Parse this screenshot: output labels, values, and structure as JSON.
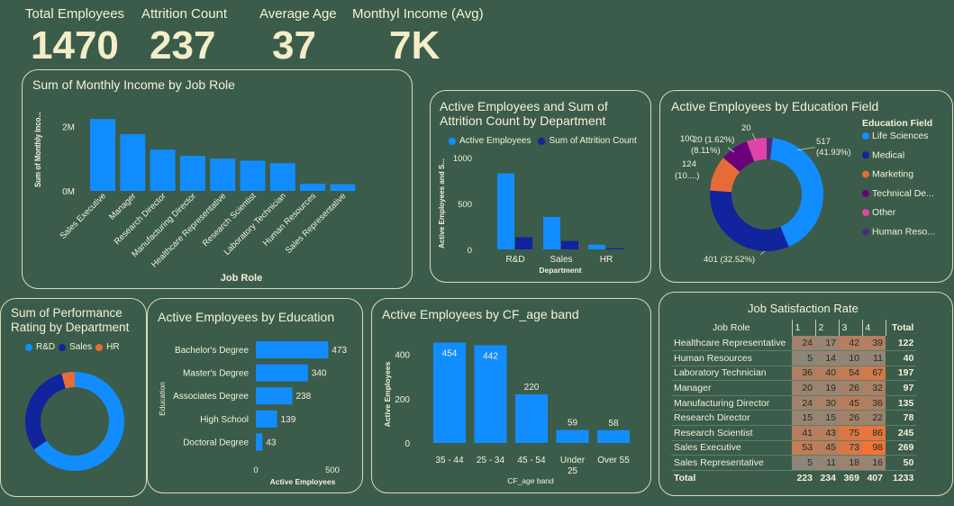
{
  "kpis": [
    {
      "label": "Total Employees",
      "value": "1470"
    },
    {
      "label": "Attrition Count",
      "value": "237"
    },
    {
      "label": "Average Age",
      "value": "37"
    },
    {
      "label": "Monthyl Income (Avg)",
      "value": "7K"
    }
  ],
  "colors": {
    "accent": "#118dff",
    "dark_blue": "#12239e",
    "orange": "#e66c37",
    "purple": "#6b007b",
    "pink": "#e044a7",
    "indigo": "#4a2d7a",
    "background": "#3b5c4a",
    "border": "#dcd9b8"
  },
  "income_by_role": {
    "title": "Sum of Monthly Income by Job Role",
    "chart_data": {
      "type": "bar",
      "title": "Sum of Monthly Income by Job Role",
      "xlabel": "Job Role",
      "ylabel": "Sum of Monthly Inco...",
      "categories": [
        "Sales Executive",
        "Manager",
        "Research Director",
        "Manufacturing Director",
        "Healthcare Representative",
        "Research Scientist",
        "Laboratory Technician",
        "Human Resources",
        "Sales Representative"
      ],
      "values": [
        2230000,
        1760000,
        1280000,
        1090000,
        1000000,
        940000,
        860000,
        220000,
        210000
      ],
      "yticks": [
        "2M",
        "0M"
      ],
      "ylim": [
        0,
        2600000
      ]
    }
  },
  "dept_chart": {
    "title_line1": "Active Employees and Sum of",
    "title_line2": "Attrition Count by Department",
    "legend": [
      "Active Employees",
      "Sum of Attrition Count"
    ],
    "chart_data": {
      "type": "bar",
      "xlabel": "Department",
      "ylabel": "Active Employees and S...",
      "categories": [
        "R&D",
        "Sales",
        "HR"
      ],
      "series": [
        {
          "name": "Active Employees",
          "values": [
            828,
            354,
            51
          ]
        },
        {
          "name": "Sum of Attrition Count",
          "values": [
            133,
            92,
            12
          ]
        }
      ],
      "yticks": [
        "1000",
        "500",
        "0"
      ],
      "ylim": [
        0,
        1000
      ]
    }
  },
  "education_field": {
    "title": "Active Employees by Education Field",
    "legend_title": "Education Field",
    "legend": [
      "Life Sciences",
      "Medical",
      "Marketing",
      "Technical De...",
      "Other",
      "Human Reso..."
    ],
    "labels": [
      "517",
      "(41.93%)",
      "401 (32.52%)",
      "124",
      "(10....)",
      "100",
      "(8.11%)",
      "20 (1.62%)",
      "20"
    ],
    "chart_data": {
      "type": "pie",
      "categories": [
        "Life Sciences",
        "Medical",
        "Marketing",
        "Technical Degree",
        "Other",
        "Human Resources"
      ],
      "values": [
        517,
        401,
        124,
        100,
        71,
        20
      ]
    }
  },
  "performance": {
    "title_line1": "Sum of Performance",
    "title_line2": "Rating by Department",
    "legend": [
      "R&D",
      "Sales",
      "HR"
    ],
    "chart_data": {
      "type": "pie",
      "categories": [
        "R&D",
        "Sales",
        "HR"
      ],
      "values": [
        65.4,
        30.3,
        4.3
      ]
    }
  },
  "education": {
    "title": "Active Employees by Education",
    "chart_data": {
      "type": "bar",
      "orientation": "horizontal",
      "xlabel": "Active Employees",
      "ylabel": "Education",
      "categories": [
        "Bachelor's Degree",
        "Master's Degree",
        "Associates Degree",
        "High School",
        "Doctoral Degree"
      ],
      "values": [
        473,
        340,
        238,
        139,
        43
      ],
      "xticks": [
        "0",
        "500"
      ],
      "xlim": [
        0,
        500
      ]
    }
  },
  "age_band": {
    "title": "Active Employees by CF_age band",
    "chart_data": {
      "type": "bar",
      "xlabel": "CF_age band",
      "ylabel": "Active Employees",
      "categories": [
        "35 - 44",
        "25 - 34",
        "45 - 54",
        "Under 25",
        "Over 55"
      ],
      "category_lines": [
        [
          "35 - 44"
        ],
        [
          "25 - 34"
        ],
        [
          "45 - 54"
        ],
        [
          "Under",
          "25"
        ],
        [
          "Over 55"
        ]
      ],
      "values": [
        454,
        442,
        220,
        59,
        58
      ],
      "yticks": [
        "400",
        "200",
        "0"
      ],
      "ylim": [
        0,
        460
      ]
    }
  },
  "job_satisfaction": {
    "title": "Job Satisfaction Rate",
    "headers": [
      "Job Role",
      "1",
      "2",
      "3",
      "4",
      "Total"
    ],
    "rows": [
      {
        "role": "Healthcare Representative",
        "values": [
          24,
          17,
          42,
          39
        ],
        "total": 122
      },
      {
        "role": "Human Resources",
        "values": [
          5,
          14,
          10,
          11
        ],
        "total": 40
      },
      {
        "role": "Laboratory Technician",
        "values": [
          36,
          40,
          54,
          67
        ],
        "total": 197
      },
      {
        "role": "Manager",
        "values": [
          20,
          19,
          26,
          32
        ],
        "total": 97
      },
      {
        "role": "Manufacturing Director",
        "values": [
          24,
          30,
          45,
          36
        ],
        "total": 135
      },
      {
        "role": "Research Director",
        "values": [
          15,
          15,
          26,
          22
        ],
        "total": 78
      },
      {
        "role": "Research Scientist",
        "values": [
          41,
          43,
          75,
          86
        ],
        "total": 245
      },
      {
        "role": "Sales Executive",
        "values": [
          53,
          45,
          73,
          98
        ],
        "total": 269
      },
      {
        "role": "Sales Representative",
        "values": [
          5,
          11,
          18,
          16
        ],
        "total": 50
      }
    ],
    "total_row": {
      "label": "Total",
      "values": [
        223,
        234,
        369,
        407
      ],
      "total": 1233
    }
  }
}
